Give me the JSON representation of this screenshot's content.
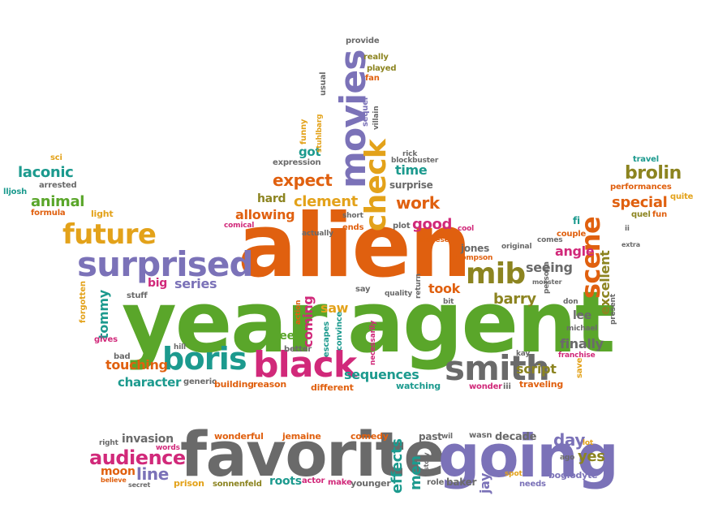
{
  "colors": {
    "orange": "#e0600f",
    "green": "#5aa62a",
    "purple": "#7b72b8",
    "teal": "#1c9a8e",
    "magenta": "#d1297a",
    "yellow": "#e3a21a",
    "gray": "#6a6a6a",
    "olive": "#8c8420"
  },
  "words": [
    {
      "text": "alien",
      "color": "orange"
    },
    {
      "text": "year",
      "color": "green"
    },
    {
      "text": "agent",
      "color": "green"
    },
    {
      "text": "favorite",
      "color": "gray"
    },
    {
      "text": "going",
      "color": "purple"
    },
    {
      "text": "movies",
      "color": "purple"
    },
    {
      "text": "surprised",
      "color": "purple"
    },
    {
      "text": "black",
      "color": "magenta"
    },
    {
      "text": "boris",
      "color": "teal"
    },
    {
      "text": "smith",
      "color": "gray"
    },
    {
      "text": "future",
      "color": "yellow"
    },
    {
      "text": "check",
      "color": "yellow"
    },
    {
      "text": "mib",
      "color": "olive"
    },
    {
      "text": "scene",
      "color": "orange"
    },
    {
      "text": "audience",
      "color": "magenta"
    },
    {
      "text": "brolin",
      "color": "olive"
    },
    {
      "text": "laconic",
      "color": "teal"
    },
    {
      "text": "animal",
      "color": "green"
    },
    {
      "text": "expect",
      "color": "orange"
    },
    {
      "text": "clement",
      "color": "yellow"
    },
    {
      "text": "work",
      "color": "orange"
    },
    {
      "text": "good",
      "color": "magenta"
    },
    {
      "text": "allowing",
      "color": "orange"
    },
    {
      "text": "series",
      "color": "purple"
    },
    {
      "text": "big",
      "color": "magenta"
    },
    {
      "text": "tommy",
      "color": "teal"
    },
    {
      "text": "coming",
      "color": "magenta"
    },
    {
      "text": "saw",
      "color": "yellow"
    },
    {
      "text": "took",
      "color": "orange"
    },
    {
      "text": "barry",
      "color": "olive"
    },
    {
      "text": "angle",
      "color": "magenta"
    },
    {
      "text": "seeing",
      "color": "gray"
    },
    {
      "text": "special",
      "color": "orange"
    },
    {
      "text": "excellent",
      "color": "olive"
    },
    {
      "text": "touching",
      "color": "orange"
    },
    {
      "text": "character",
      "color": "teal"
    },
    {
      "text": "sequences",
      "color": "teal"
    },
    {
      "text": "script",
      "color": "olive"
    },
    {
      "text": "finally",
      "color": "gray"
    },
    {
      "text": "lee",
      "color": "gray"
    },
    {
      "text": "green",
      "color": "green"
    },
    {
      "text": "time",
      "color": "teal"
    },
    {
      "text": "got",
      "color": "teal"
    },
    {
      "text": "hard",
      "color": "olive"
    },
    {
      "text": "surprise",
      "color": "gray"
    },
    {
      "text": "jones",
      "color": "gray"
    },
    {
      "text": "line",
      "color": "purple"
    },
    {
      "text": "effects",
      "color": "teal"
    },
    {
      "text": "men",
      "color": "teal"
    },
    {
      "text": "day",
      "color": "purple"
    },
    {
      "text": "yes",
      "color": "olive"
    },
    {
      "text": "jay",
      "color": "purple"
    },
    {
      "text": "invasion",
      "color": "gray"
    },
    {
      "text": "moon",
      "color": "orange"
    },
    {
      "text": "roots",
      "color": "teal"
    },
    {
      "text": "decade",
      "color": "gray"
    },
    {
      "text": "past",
      "color": "gray"
    },
    {
      "text": "wonderful",
      "color": "orange"
    },
    {
      "text": "jemaine",
      "color": "orange"
    },
    {
      "text": "comedy",
      "color": "orange"
    },
    {
      "text": "younger",
      "color": "gray"
    },
    {
      "text": "make",
      "color": "magenta"
    },
    {
      "text": "actor",
      "color": "magenta"
    },
    {
      "text": "sonnenfeld",
      "color": "olive"
    },
    {
      "text": "prison",
      "color": "yellow"
    },
    {
      "text": "baker",
      "color": "gray"
    },
    {
      "text": "role",
      "color": "gray"
    },
    {
      "text": "boglodyte",
      "color": "purple"
    },
    {
      "text": "needs",
      "color": "purple"
    },
    {
      "text": "ago",
      "color": "gray"
    },
    {
      "text": "lot",
      "color": "yellow"
    },
    {
      "text": "spot",
      "color": "yellow"
    },
    {
      "text": "wasn",
      "color": "gray"
    },
    {
      "text": "wil",
      "color": "gray"
    },
    {
      "text": "story",
      "color": "gray"
    },
    {
      "text": "secret",
      "color": "gray"
    },
    {
      "text": "believe",
      "color": "orange"
    },
    {
      "text": "words",
      "color": "magenta"
    },
    {
      "text": "right",
      "color": "gray"
    },
    {
      "text": "formula",
      "color": "orange"
    },
    {
      "text": "light",
      "color": "yellow"
    },
    {
      "text": "arrested",
      "color": "gray"
    },
    {
      "text": "lljosh",
      "color": "teal"
    },
    {
      "text": "sci",
      "color": "yellow"
    },
    {
      "text": "stuff",
      "color": "gray"
    },
    {
      "text": "forgotten",
      "color": "yellow"
    },
    {
      "text": "gives",
      "color": "magenta"
    },
    {
      "text": "bad",
      "color": "gray"
    },
    {
      "text": "hill",
      "color": "gray"
    },
    {
      "text": "generic",
      "color": "gray"
    },
    {
      "text": "building",
      "color": "orange"
    },
    {
      "text": "reason",
      "color": "orange"
    },
    {
      "text": "different",
      "color": "orange"
    },
    {
      "text": "watching",
      "color": "teal"
    },
    {
      "text": "wonder",
      "color": "magenta"
    },
    {
      "text": "iii",
      "color": "gray"
    },
    {
      "text": "traveling",
      "color": "orange"
    },
    {
      "text": "save",
      "color": "yellow"
    },
    {
      "text": "kay",
      "color": "gray"
    },
    {
      "text": "franchise",
      "color": "magenta"
    },
    {
      "text": "michael",
      "color": "gray"
    },
    {
      "text": "don",
      "color": "gray"
    },
    {
      "text": "persona",
      "color": "gray"
    },
    {
      "text": "monster",
      "color": "gray"
    },
    {
      "text": "present",
      "color": "gray"
    },
    {
      "text": "extra",
      "color": "gray"
    },
    {
      "text": "comes",
      "color": "gray"
    },
    {
      "text": "couple",
      "color": "orange"
    },
    {
      "text": "quel",
      "color": "olive"
    },
    {
      "text": "fun",
      "color": "orange"
    },
    {
      "text": "fi",
      "color": "teal"
    },
    {
      "text": "ii",
      "color": "gray"
    },
    {
      "text": "quite",
      "color": "yellow"
    },
    {
      "text": "performances",
      "color": "orange"
    },
    {
      "text": "travel",
      "color": "teal"
    },
    {
      "text": "original",
      "color": "gray"
    },
    {
      "text": "thompson",
      "color": "orange"
    },
    {
      "text": "cool",
      "color": "magenta"
    },
    {
      "text": "chinese",
      "color": "orange"
    },
    {
      "text": "plot",
      "color": "gray"
    },
    {
      "text": "actually",
      "color": "gray"
    },
    {
      "text": "ends",
      "color": "orange"
    },
    {
      "text": "short",
      "color": "gray"
    },
    {
      "text": "comical",
      "color": "magenta"
    },
    {
      "text": "say",
      "color": "gray"
    },
    {
      "text": "quality",
      "color": "gray"
    },
    {
      "text": "return",
      "color": "gray"
    },
    {
      "text": "bit",
      "color": "gray"
    },
    {
      "text": "action",
      "color": "orange"
    },
    {
      "text": "escapes",
      "color": "teal"
    },
    {
      "text": "convince",
      "color": "teal"
    },
    {
      "text": "necessarily",
      "color": "magenta"
    },
    {
      "text": "better",
      "color": "gray"
    },
    {
      "text": "expression",
      "color": "gray"
    },
    {
      "text": "rick",
      "color": "gray"
    },
    {
      "text": "blockbuster",
      "color": "gray"
    },
    {
      "text": "funny",
      "color": "yellow"
    },
    {
      "text": "stuhlbarg",
      "color": "yellow"
    },
    {
      "text": "sequel",
      "color": "purple"
    },
    {
      "text": "villain",
      "color": "gray"
    },
    {
      "text": "provide",
      "color": "gray"
    },
    {
      "text": "really",
      "color": "olive"
    },
    {
      "text": "played",
      "color": "olive"
    },
    {
      "text": "fan",
      "color": "orange"
    },
    {
      "text": "usual",
      "color": "gray"
    }
  ]
}
